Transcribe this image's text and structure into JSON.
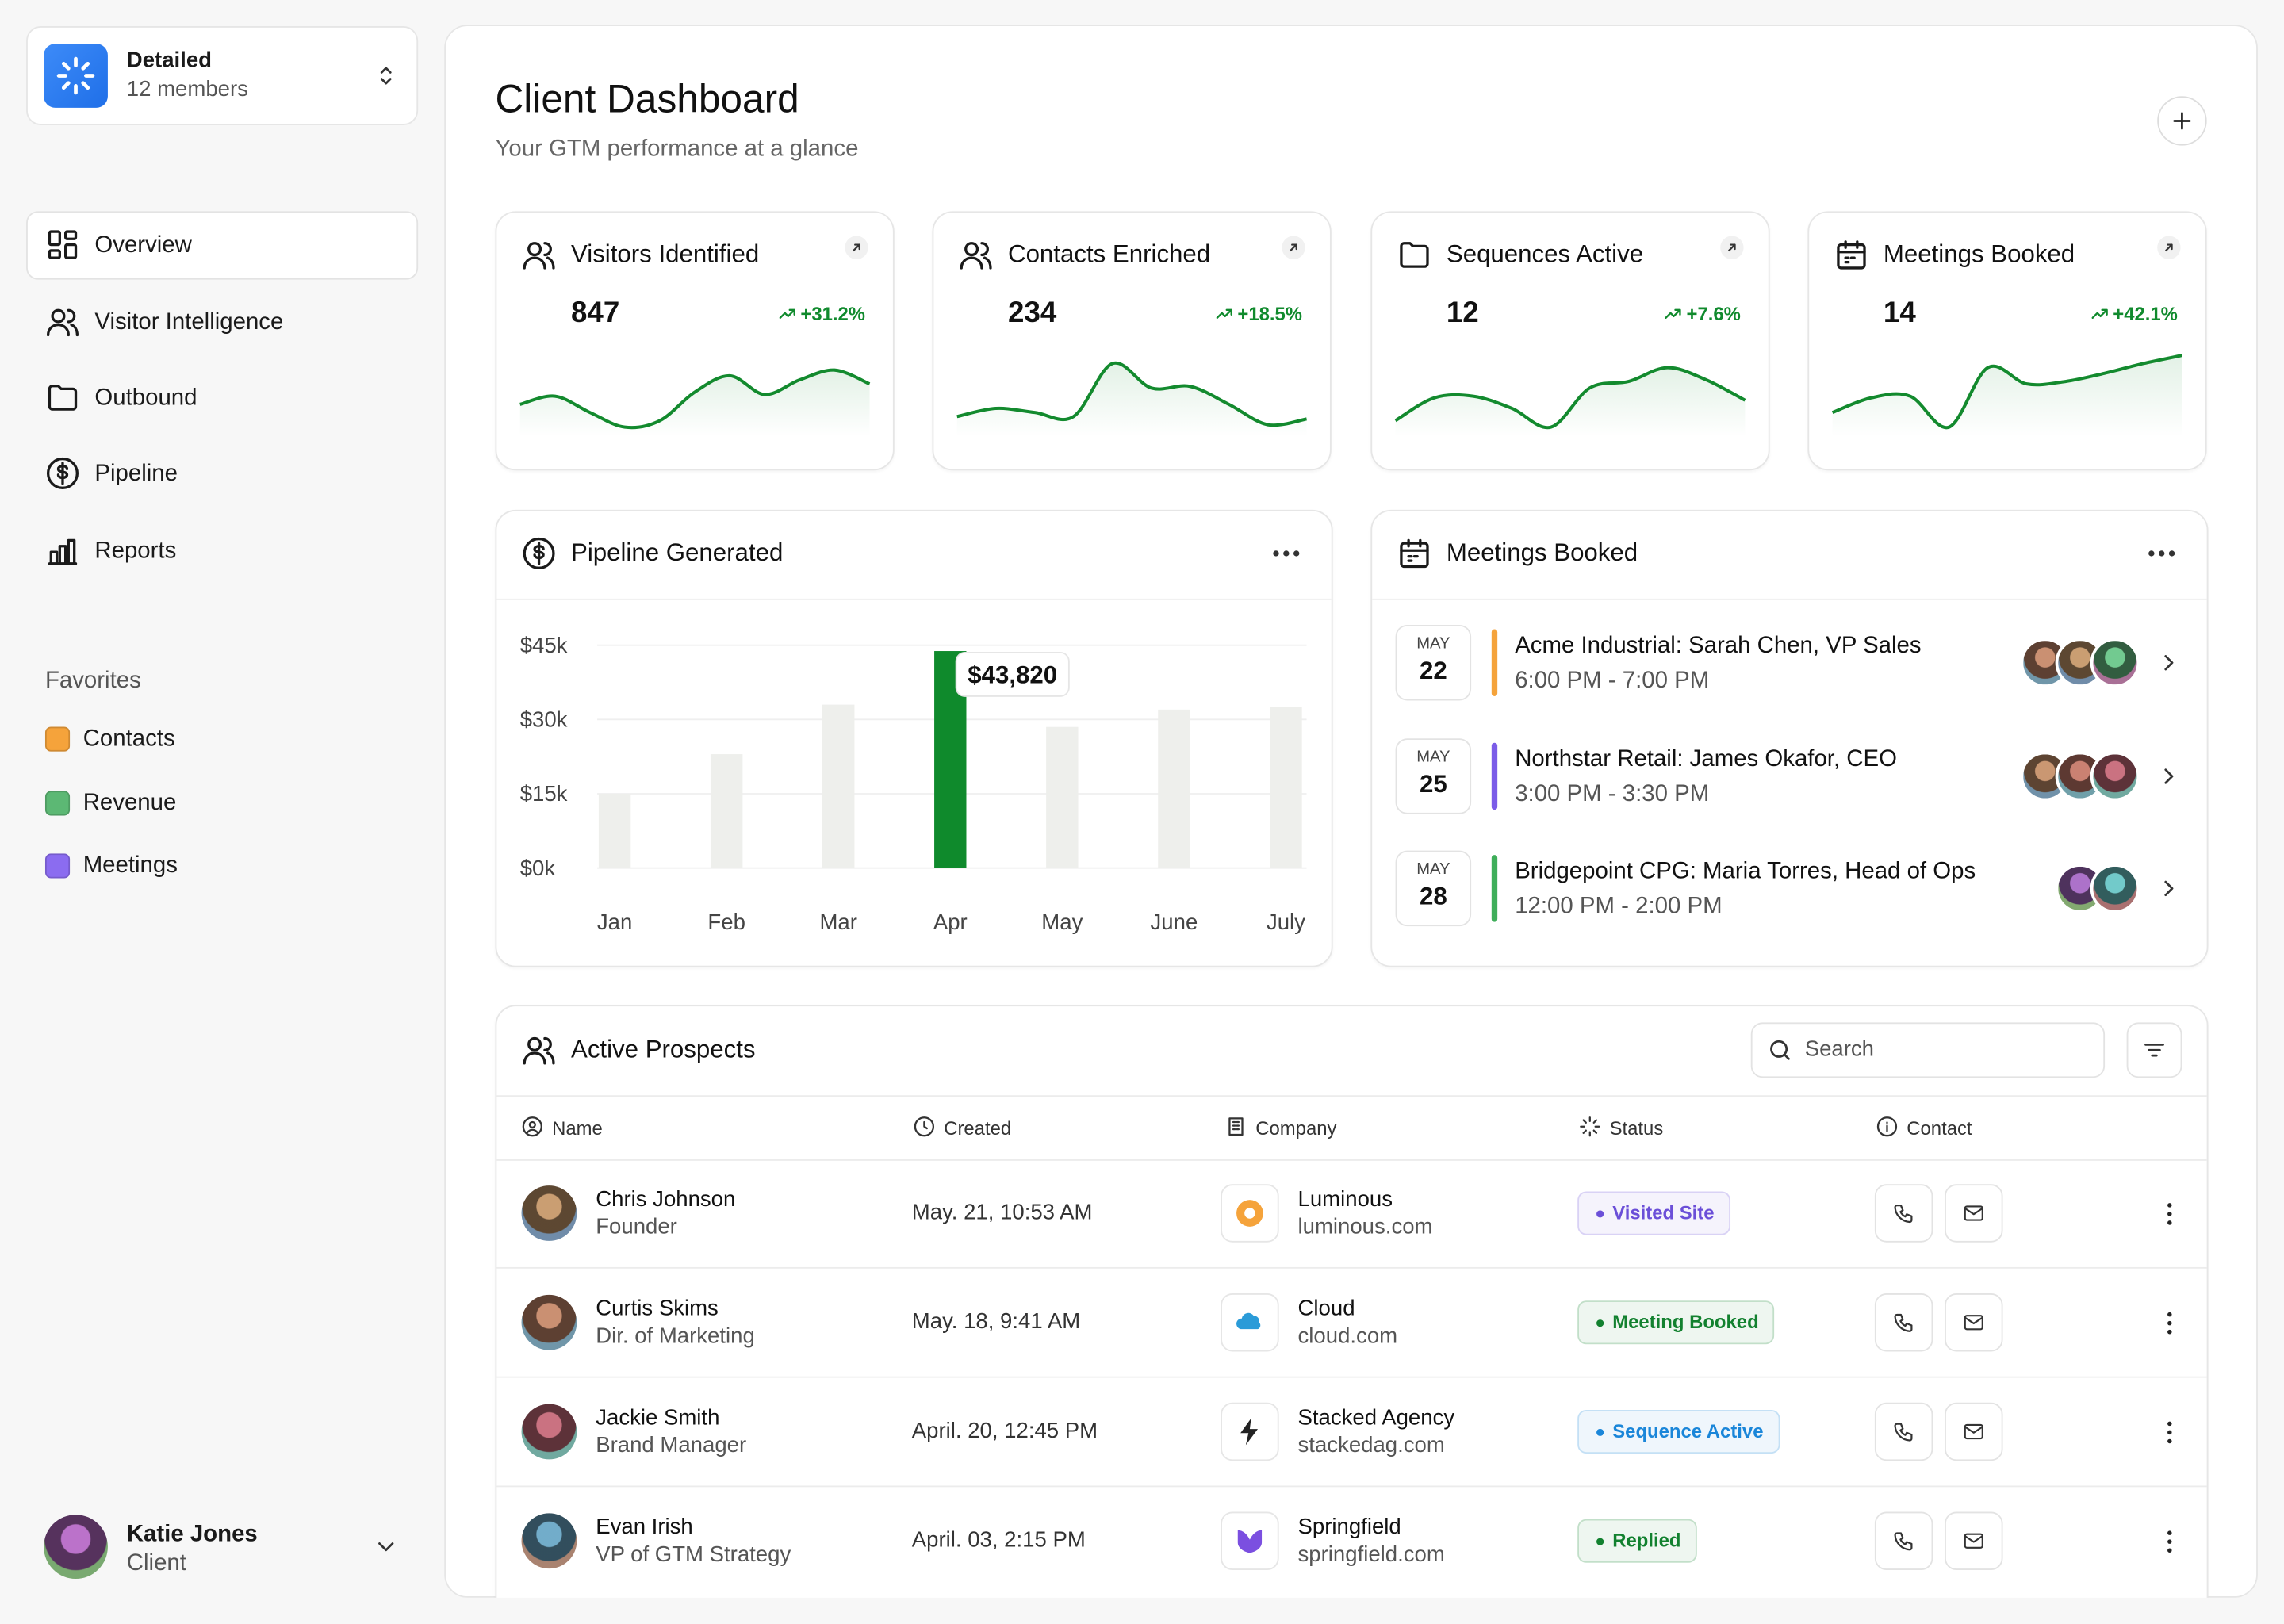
{
  "workspace": {
    "name": "Detailed",
    "members": "12 members"
  },
  "nav": [
    "Overview",
    "Visitor Intelligence",
    "Outbound",
    "Pipeline",
    "Reports"
  ],
  "favorites": {
    "title": "Favorites",
    "items": [
      {
        "label": "Contacts",
        "color": "#f5a33b"
      },
      {
        "label": "Revenue",
        "color": "#5cb874"
      },
      {
        "label": "Meetings",
        "color": "#8b6cf0"
      }
    ]
  },
  "user": {
    "name": "Katie Jones",
    "role": "Client"
  },
  "header": {
    "title": "Client Dashboard",
    "subtitle": "Your GTM performance at a glance"
  },
  "stats": [
    {
      "title": "Visitors Identified",
      "value": 847,
      "change": "+31.2%"
    },
    {
      "title": "Contacts Enriched",
      "value": 234,
      "change": "+18.5%"
    },
    {
      "title": "Sequences Active",
      "value": 12,
      "change": "+7.6%"
    },
    {
      "title": "Meetings Booked",
      "value": 14,
      "change": "+42.1%"
    }
  ],
  "chart_data": [
    {
      "type": "line",
      "color": "#138a2e",
      "values": [
        4,
        5,
        3,
        1.2,
        2,
        5.5,
        7.5,
        5.2,
        7,
        8.2,
        6.5
      ],
      "ylim": [
        0,
        10
      ]
    },
    {
      "type": "line",
      "color": "#138a2e",
      "values": [
        2.5,
        3.5,
        3,
        2.5,
        9,
        6,
        6.2,
        4,
        1.5,
        2.2
      ],
      "ylim": [
        0,
        10
      ]
    },
    {
      "type": "line",
      "color": "#138a2e",
      "values": [
        2,
        4.8,
        5,
        3.5,
        1.2,
        6,
        6.8,
        8.5,
        7,
        4.5
      ],
      "ylim": [
        0,
        10
      ]
    },
    {
      "type": "line",
      "color": "#138a2e",
      "values": [
        3,
        4.8,
        5,
        1.2,
        8.5,
        6.5,
        6.8,
        7.8,
        9,
        10
      ],
      "ylim": [
        0,
        10
      ]
    },
    {
      "type": "bar",
      "title": "Pipeline Generated",
      "categories": [
        "Jan",
        "Feb",
        "Mar",
        "Apr",
        "May",
        "June",
        "July"
      ],
      "values": [
        15000,
        23000,
        33000,
        43820,
        28500,
        32000,
        32500
      ],
      "value_labels": [
        null,
        null,
        null,
        "$43,820",
        null,
        null,
        null
      ],
      "colors": [
        "#eeefec",
        "#eeefec",
        "#eeefec",
        "#0f8a2c",
        "#eeefec",
        "#eeefec",
        "#eeefec"
      ],
      "ylim": [
        0,
        45000
      ],
      "yticks": [
        {
          "value": 0,
          "label": "$0k"
        },
        {
          "value": 15000,
          "label": "$15k"
        },
        {
          "value": 30000,
          "label": "$30k"
        },
        {
          "value": 45000,
          "label": "$45k"
        }
      ],
      "grid": true
    }
  ],
  "meetings": {
    "title": "Meetings Booked",
    "items": [
      {
        "month": "MAY",
        "day": 22,
        "title": "Acme Industrial: Sarah Chen, VP Sales",
        "time": "6:00 PM - 7:00 PM",
        "color": "#f5a33b"
      },
      {
        "month": "MAY",
        "day": 25,
        "title": "Northstar Retail: James Okafor, CEO",
        "time": "3:00 PM - 3:30 PM",
        "color": "#7b5ce8"
      },
      {
        "month": "MAY",
        "day": 28,
        "title": "Bridgepoint CPG: Maria Torres, Head of Ops",
        "time": "12:00 PM - 2:00 PM",
        "color": "#3fae5a"
      }
    ]
  },
  "prospects": {
    "title": "Active Prospects",
    "search": "Search",
    "columns": [
      "Name",
      "Created",
      "Company",
      "Status",
      "Contact"
    ],
    "rows": [
      {
        "name": "Chris Johnson",
        "role": "Founder",
        "created": "May. 21, 10:53 AM",
        "company": "Luminous",
        "domain": "luminous.com",
        "status": "Visited Site",
        "status_color": "#6b4fd8"
      },
      {
        "name": "Curtis Skims",
        "role": "Dir. of Marketing",
        "created": "May. 18, 9:41 AM",
        "company": "Cloud",
        "domain": "cloud.com",
        "status": "Meeting Booked",
        "status_color": "#12812f"
      },
      {
        "name": "Jackie Smith",
        "role": "Brand Manager",
        "created": "April. 20, 12:45 PM",
        "company": "Stacked Agency",
        "domain": "stackedag.com",
        "status": "Sequence Active",
        "status_color": "#1a86d9"
      },
      {
        "name": "Evan Irish",
        "role": "VP of GTM Strategy",
        "created": "April. 03, 2:15 PM",
        "company": "Springfield",
        "domain": "springfield.com",
        "status": "Replied",
        "status_color": "#12812f"
      }
    ]
  }
}
